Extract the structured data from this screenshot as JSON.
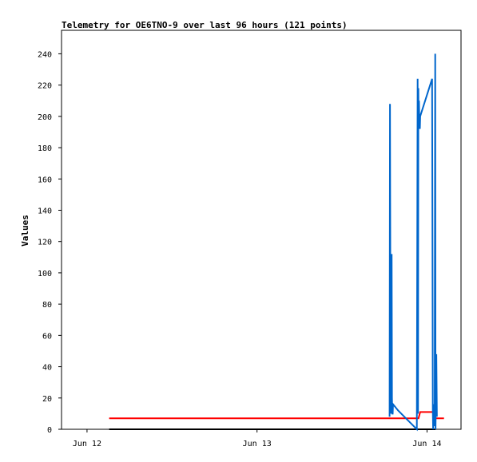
{
  "chart_data": {
    "type": "line",
    "title": "Telemetry for OE6TNO-9 over last 96 hours (121 points)",
    "xlabel": "",
    "ylabel": "Values",
    "xlim": [
      -0.15,
      2.2
    ],
    "ylim": [
      0,
      255
    ],
    "x_ticks": [
      {
        "value": 0,
        "label": "Jun 12"
      },
      {
        "value": 1,
        "label": "Jun 13"
      },
      {
        "value": 2,
        "label": "Jun 14"
      }
    ],
    "y_ticks": [
      0,
      20,
      40,
      60,
      80,
      100,
      120,
      140,
      160,
      180,
      200,
      220,
      240
    ],
    "grid": false,
    "legend": "none",
    "series": [
      {
        "color": "#000000",
        "x": [
          0.13,
          2.05
        ],
        "y": [
          0,
          0
        ]
      },
      {
        "color": "#ff0000",
        "x": [
          0.13,
          1.78,
          1.8,
          1.95,
          1.96,
          2.04,
          2.05,
          2.1
        ],
        "y": [
          7,
          7,
          7,
          7,
          11,
          11,
          7,
          7
        ]
      },
      {
        "color": "#0066cc",
        "x": [
          1.78,
          1.782,
          1.786,
          1.788,
          1.79,
          1.792,
          1.794,
          1.796,
          1.798,
          1.8,
          1.83,
          1.94,
          1.945,
          1.947,
          1.949,
          1.95,
          1.953,
          1.955,
          1.958,
          1.96,
          2.03,
          2.032,
          2.034,
          2.036,
          2.038,
          2.04,
          2.045,
          2.048,
          2.05,
          2.055,
          2.058
        ],
        "y": [
          8,
          208,
          10,
          104,
          10,
          112,
          20,
          10,
          10,
          16,
          12,
          0,
          224,
          10,
          218,
          200,
          210,
          195,
          192,
          200,
          224,
          112,
          12,
          0,
          15,
          16,
          2,
          240,
          0,
          48,
          8
        ]
      }
    ]
  }
}
